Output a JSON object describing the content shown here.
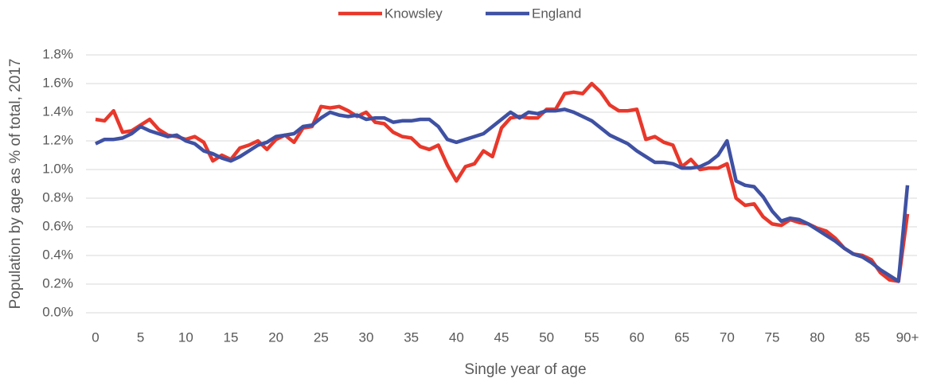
{
  "chart_data": {
    "type": "line",
    "x_label": "Single year of age",
    "y_label": "Population by age as % of total, 2017",
    "legend": "top",
    "grid": true,
    "categories": [
      "0",
      null,
      null,
      null,
      null,
      "5",
      null,
      null,
      null,
      null,
      "10",
      null,
      null,
      null,
      null,
      "15",
      null,
      null,
      null,
      null,
      "20",
      null,
      null,
      null,
      null,
      "25",
      null,
      null,
      null,
      null,
      "30",
      null,
      null,
      null,
      null,
      "35",
      null,
      null,
      null,
      null,
      "40",
      null,
      null,
      null,
      null,
      "45",
      null,
      null,
      null,
      null,
      "50",
      null,
      null,
      null,
      null,
      "55",
      null,
      null,
      null,
      null,
      "60",
      null,
      null,
      null,
      null,
      "65",
      null,
      null,
      null,
      null,
      "70",
      null,
      null,
      null,
      null,
      "75",
      null,
      null,
      null,
      null,
      "80",
      null,
      null,
      null,
      null,
      "85",
      null,
      null,
      null,
      null,
      "90+"
    ],
    "series": [
      {
        "name": "Knowsley",
        "color": "#e8382b",
        "values": [
          1.35,
          1.34,
          1.41,
          1.26,
          1.27,
          1.31,
          1.35,
          1.28,
          1.24,
          1.23,
          1.21,
          1.23,
          1.19,
          1.06,
          1.1,
          1.07,
          1.15,
          1.17,
          1.2,
          1.14,
          1.21,
          1.24,
          1.19,
          1.29,
          1.3,
          1.44,
          1.43,
          1.44,
          1.41,
          1.37,
          1.4,
          1.33,
          1.32,
          1.26,
          1.23,
          1.22,
          1.16,
          1.14,
          1.17,
          1.03,
          0.92,
          1.02,
          1.04,
          1.13,
          1.09,
          1.29,
          1.36,
          1.37,
          1.36,
          1.36,
          1.42,
          1.42,
          1.53,
          1.54,
          1.53,
          1.6,
          1.54,
          1.45,
          1.41,
          1.41,
          1.42,
          1.21,
          1.23,
          1.19,
          1.17,
          1.02,
          1.07,
          1.0,
          1.01,
          1.01,
          1.04,
          0.8,
          0.75,
          0.76,
          0.67,
          0.62,
          0.61,
          0.65,
          0.63,
          0.62,
          0.59,
          0.57,
          0.52,
          0.45,
          0.41,
          0.4,
          0.37,
          0.28,
          0.23,
          0.22,
          0.69
        ]
      },
      {
        "name": "England",
        "color": "#3f51a3",
        "values": [
          1.18,
          1.21,
          1.21,
          1.22,
          1.25,
          1.3,
          1.27,
          1.25,
          1.23,
          1.24,
          1.2,
          1.18,
          1.13,
          1.11,
          1.08,
          1.06,
          1.09,
          1.13,
          1.17,
          1.19,
          1.23,
          1.24,
          1.25,
          1.3,
          1.31,
          1.36,
          1.4,
          1.38,
          1.37,
          1.38,
          1.35,
          1.36,
          1.36,
          1.33,
          1.34,
          1.34,
          1.35,
          1.35,
          1.3,
          1.21,
          1.19,
          1.21,
          1.23,
          1.25,
          1.3,
          1.35,
          1.4,
          1.36,
          1.4,
          1.39,
          1.41,
          1.41,
          1.42,
          1.4,
          1.37,
          1.34,
          1.29,
          1.24,
          1.21,
          1.18,
          1.13,
          1.09,
          1.05,
          1.05,
          1.04,
          1.01,
          1.01,
          1.02,
          1.05,
          1.1,
          1.2,
          0.92,
          0.89,
          0.88,
          0.81,
          0.71,
          0.64,
          0.66,
          0.65,
          0.62,
          0.58,
          0.54,
          0.5,
          0.45,
          0.41,
          0.39,
          0.35,
          0.3,
          0.26,
          0.22,
          0.89
        ]
      }
    ],
    "ylim": [
      0,
      1.8
    ],
    "yticks": [
      {
        "value": 0,
        "label": "0.0%"
      },
      {
        "value": 0.2,
        "label": "0.2%"
      },
      {
        "value": 0.4,
        "label": "0.4%"
      },
      {
        "value": 0.6,
        "label": "0.6%"
      },
      {
        "value": 0.8,
        "label": "0.8%"
      },
      {
        "value": 1.0,
        "label": "1.0%"
      },
      {
        "value": 1.2,
        "label": "1.2%"
      },
      {
        "value": 1.4,
        "label": "1.4%"
      },
      {
        "value": 1.6,
        "label": "1.6%"
      },
      {
        "value": 1.8,
        "label": "1.8%"
      }
    ]
  }
}
